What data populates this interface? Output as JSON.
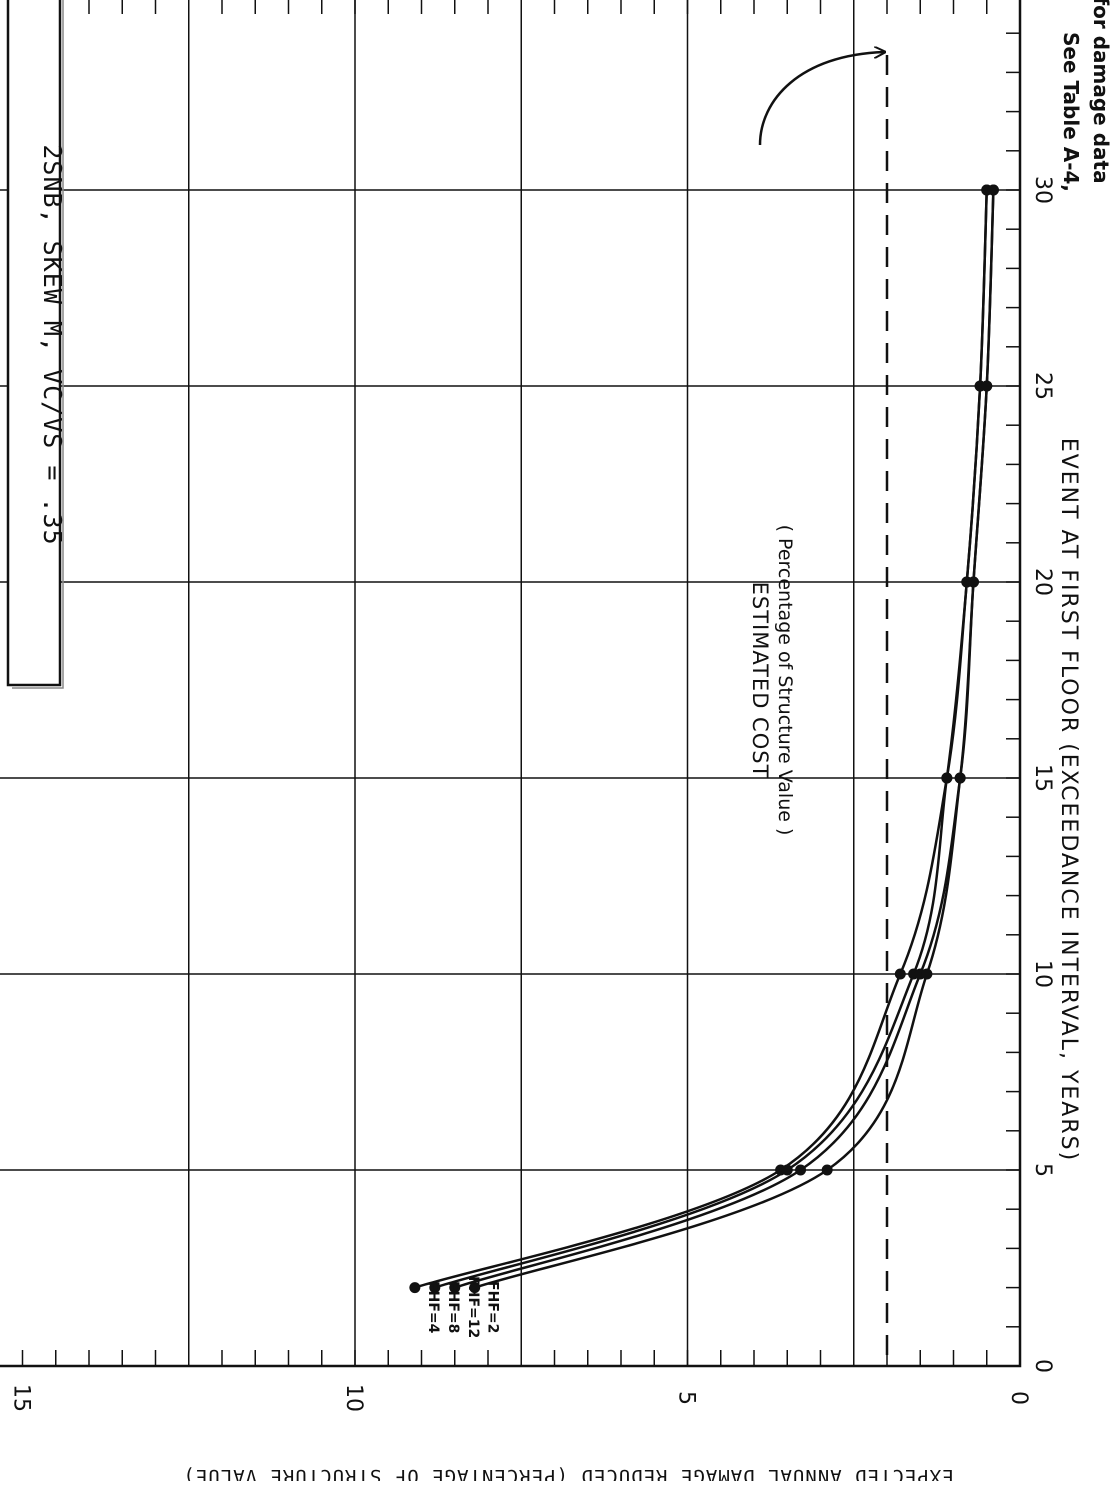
{
  "chart_data": {
    "type": "line",
    "orientation": "rotated 90 degrees clockwise (x axis runs top-to-bottom along the right side, y axis runs right-to-left along the bottom)",
    "title": "2SNB, SKEW M, VC/VS = .35",
    "xlabel": "EVENT AT FIRST FLOOR (EXCEEDANCE INTERVAL, YEARS)",
    "ylabel": "EXPECTED ANNUAL DAMAGE REDUCED (PERCENTAGE OF STRUCTURE VALUE)",
    "x_ticks": [
      "0",
      "5",
      "10",
      "15",
      "20",
      "25",
      "30"
    ],
    "y_ticks": [
      "0",
      "5",
      "10",
      "15"
    ],
    "xlim": [
      0,
      35
    ],
    "ylim": [
      0,
      15.5
    ],
    "grid": true,
    "series": [
      {
        "name": "FHF=4",
        "x": [
          2,
          5,
          10,
          15,
          20,
          25,
          30
        ],
        "y": [
          9.1,
          3.6,
          1.8,
          1.1,
          0.8,
          0.6,
          0.5
        ]
      },
      {
        "name": "FHF=8",
        "x": [
          2,
          5,
          10,
          15,
          20,
          25,
          30
        ],
        "y": [
          8.8,
          3.5,
          1.6,
          1.1,
          0.8,
          0.6,
          0.5
        ]
      },
      {
        "name": "FHF=12",
        "x": [
          2,
          5,
          10,
          15,
          20,
          25,
          30
        ],
        "y": [
          8.5,
          3.3,
          1.5,
          0.9,
          0.7,
          0.5,
          0.4
        ]
      },
      {
        "name": "FHF=2",
        "x": [
          2,
          5,
          10,
          15,
          20,
          25,
          30
        ],
        "y": [
          8.2,
          2.9,
          1.4,
          0.9,
          0.7,
          0.5,
          0.4
        ]
      }
    ],
    "reference_line": {
      "y": 2.0,
      "style": "dashed"
    },
    "annotations": {
      "cost_line_1": "ESTIMATED COST",
      "cost_line_2": "( Percentage of Structure Value )",
      "table_note_1": "See Table A-4,",
      "table_note_2": "for damage data"
    }
  }
}
